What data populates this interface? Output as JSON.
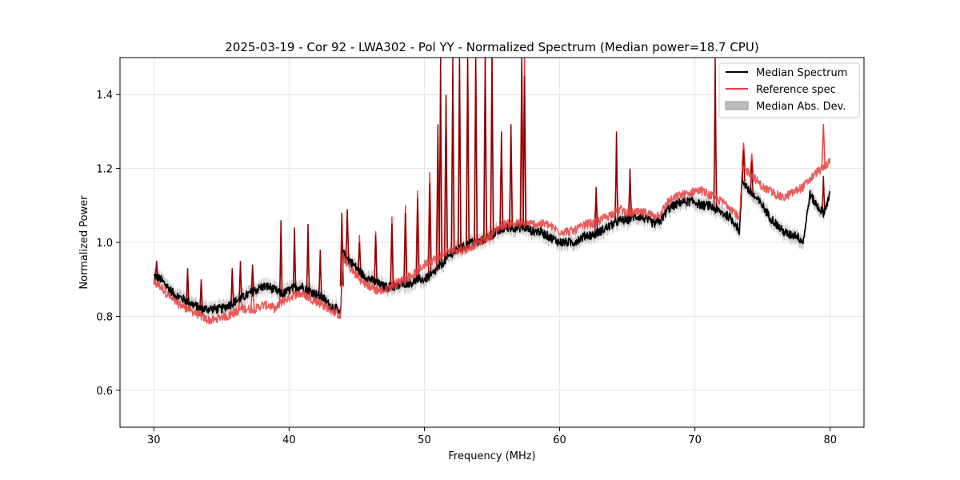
{
  "chart_data": {
    "type": "line",
    "title": "2025-03-19 - Cor 92 - LWA302 - Pol YY - Normalized Spectrum (Median power=18.7 CPU)",
    "xlabel": "Frequency (MHz)",
    "ylabel": "Normalized Power",
    "xlim": [
      27.5,
      82.5
    ],
    "ylim": [
      0.5,
      1.5
    ],
    "xticks": [
      30,
      40,
      50,
      60,
      70,
      80
    ],
    "yticks": [
      0.6,
      0.8,
      1.0,
      1.2,
      1.4
    ],
    "grid": true,
    "legend_position": "top-right",
    "legend": {
      "median": "Median Spectrum",
      "reference": "Reference spec",
      "mad": "Median Abs. Dev."
    },
    "colors": {
      "median": "#000000",
      "reference": "#e8403f",
      "overlap": "#8b0000",
      "mad": "#bdbdbd"
    },
    "series": [
      {
        "name": "Median Spectrum",
        "x": [
          30,
          30.5,
          31,
          31.5,
          32,
          32.5,
          33,
          33.5,
          34,
          34.5,
          35,
          35.5,
          36,
          36.5,
          37,
          37.5,
          38,
          38.5,
          39,
          39.5,
          40,
          40.5,
          41,
          41.5,
          42,
          42.5,
          43,
          43.5,
          43.8,
          44,
          44.5,
          45,
          45.5,
          46,
          46.5,
          47,
          47.5,
          48,
          48.5,
          49,
          49.5,
          50,
          50.5,
          51,
          51.5,
          52,
          52.5,
          53,
          53.5,
          54,
          54.5,
          55,
          55.5,
          56,
          56.5,
          57,
          57.5,
          58,
          58.5,
          59,
          59.5,
          60,
          60.5,
          61,
          61.5,
          62,
          62.5,
          63,
          63.5,
          64,
          64.5,
          65,
          65.5,
          66,
          66.5,
          67,
          67.5,
          68,
          68.5,
          69,
          69.5,
          70,
          70.5,
          71,
          71.5,
          72,
          72.5,
          73,
          73.3,
          73.5,
          74,
          74.5,
          75,
          75.5,
          76,
          76.5,
          77,
          77.5,
          78,
          78.5,
          79,
          79.5,
          80
        ],
        "y": [
          0.91,
          0.9,
          0.88,
          0.86,
          0.85,
          0.84,
          0.83,
          0.82,
          0.82,
          0.82,
          0.82,
          0.83,
          0.84,
          0.85,
          0.86,
          0.87,
          0.88,
          0.88,
          0.87,
          0.86,
          0.87,
          0.88,
          0.88,
          0.87,
          0.86,
          0.85,
          0.83,
          0.82,
          0.8,
          0.97,
          0.95,
          0.93,
          0.91,
          0.9,
          0.89,
          0.88,
          0.88,
          0.88,
          0.89,
          0.89,
          0.9,
          0.9,
          0.91,
          0.93,
          0.95,
          0.97,
          0.98,
          0.99,
          1.0,
          1.0,
          1.01,
          1.02,
          1.03,
          1.04,
          1.04,
          1.04,
          1.04,
          1.03,
          1.03,
          1.02,
          1.01,
          1.0,
          1.0,
          1.0,
          1.01,
          1.02,
          1.02,
          1.03,
          1.04,
          1.05,
          1.06,
          1.06,
          1.07,
          1.07,
          1.06,
          1.05,
          1.06,
          1.09,
          1.1,
          1.11,
          1.11,
          1.11,
          1.1,
          1.1,
          1.09,
          1.08,
          1.07,
          1.05,
          1.03,
          1.17,
          1.14,
          1.12,
          1.1,
          1.07,
          1.05,
          1.03,
          1.02,
          1.02,
          1.0,
          1.13,
          1.1,
          1.08,
          1.13
        ]
      },
      {
        "name": "Reference spec",
        "x": [
          30,
          30.5,
          31,
          31.5,
          32,
          32.5,
          33,
          33.5,
          34,
          34.5,
          35,
          35.5,
          36,
          36.5,
          37,
          37.5,
          38,
          38.5,
          39,
          39.5,
          40,
          40.5,
          41,
          41.5,
          42,
          42.5,
          43,
          43.5,
          43.8,
          44,
          44.5,
          45,
          45.5,
          46,
          46.5,
          47,
          47.5,
          48,
          48.5,
          49,
          49.5,
          50,
          50.5,
          51,
          51.5,
          52,
          52.5,
          53,
          53.5,
          54,
          54.5,
          55,
          55.5,
          56,
          56.5,
          57,
          57.5,
          58,
          58.5,
          59,
          59.5,
          60,
          60.5,
          61,
          61.5,
          62,
          62.5,
          63,
          63.5,
          64,
          64.5,
          65,
          65.5,
          66,
          66.5,
          67,
          67.5,
          68,
          68.5,
          69,
          69.5,
          70,
          70.5,
          71,
          71.5,
          72,
          72.5,
          73,
          73.3,
          73.5,
          74,
          74.5,
          75,
          75.5,
          76,
          76.5,
          77,
          77.5,
          78,
          78.5,
          79,
          79.5,
          80
        ],
        "y": [
          0.89,
          0.88,
          0.86,
          0.84,
          0.83,
          0.82,
          0.81,
          0.8,
          0.79,
          0.79,
          0.8,
          0.8,
          0.81,
          0.82,
          0.82,
          0.82,
          0.83,
          0.83,
          0.82,
          0.84,
          0.85,
          0.86,
          0.86,
          0.85,
          0.84,
          0.83,
          0.82,
          0.81,
          0.8,
          0.96,
          0.93,
          0.91,
          0.89,
          0.88,
          0.87,
          0.87,
          0.88,
          0.89,
          0.9,
          0.91,
          0.92,
          0.94,
          0.95,
          0.96,
          0.97,
          0.98,
          0.98,
          0.98,
          0.99,
          1.0,
          1.01,
          1.02,
          1.04,
          1.05,
          1.05,
          1.05,
          1.05,
          1.05,
          1.05,
          1.05,
          1.04,
          1.03,
          1.03,
          1.03,
          1.04,
          1.05,
          1.05,
          1.06,
          1.07,
          1.08,
          1.09,
          1.08,
          1.08,
          1.08,
          1.08,
          1.07,
          1.08,
          1.11,
          1.12,
          1.13,
          1.13,
          1.14,
          1.14,
          1.13,
          1.12,
          1.11,
          1.1,
          1.08,
          1.06,
          1.2,
          1.19,
          1.17,
          1.15,
          1.14,
          1.13,
          1.12,
          1.13,
          1.14,
          1.15,
          1.17,
          1.19,
          1.2,
          1.22
        ]
      }
    ],
    "spikes": [
      {
        "x": 30.2,
        "median": 0.95,
        "reference": 0.94
      },
      {
        "x": 32.5,
        "median": 0.93,
        "reference": 0.88
      },
      {
        "x": 33.5,
        "median": 0.9,
        "reference": 0.88
      },
      {
        "x": 35.8,
        "median": 0.93,
        "reference": 0.9
      },
      {
        "x": 36.4,
        "median": 0.95,
        "reference": 0.92
      },
      {
        "x": 37.3,
        "median": 0.94,
        "reference": 0.9
      },
      {
        "x": 39.4,
        "median": 1.06,
        "reference": 0.96
      },
      {
        "x": 40.4,
        "median": 1.04,
        "reference": 0.97
      },
      {
        "x": 41.4,
        "median": 1.05,
        "reference": 0.98
      },
      {
        "x": 42.3,
        "median": 0.98,
        "reference": 0.96
      },
      {
        "x": 43.9,
        "median": 1.08,
        "reference": 1.06
      },
      {
        "x": 44.3,
        "median": 1.09,
        "reference": 1.07
      },
      {
        "x": 45.2,
        "median": 1.0,
        "reference": 1.02
      },
      {
        "x": 46.4,
        "median": 1.02,
        "reference": 1.03
      },
      {
        "x": 47.6,
        "median": 1.05,
        "reference": 1.07
      },
      {
        "x": 48.6,
        "median": 1.08,
        "reference": 1.1
      },
      {
        "x": 49.5,
        "median": 1.12,
        "reference": 1.14
      },
      {
        "x": 50.4,
        "median": 1.16,
        "reference": 1.19
      },
      {
        "x": 51.0,
        "median": 1.32,
        "reference": 1.29
      },
      {
        "x": 51.2,
        "median": 1.5,
        "reference": 1.35
      },
      {
        "x": 51.6,
        "median": 1.4,
        "reference": 1.38
      },
      {
        "x": 52.1,
        "median": 1.5,
        "reference": 1.45
      },
      {
        "x": 52.6,
        "median": 1.5,
        "reference": 1.48
      },
      {
        "x": 53.2,
        "median": 1.5,
        "reference": 1.5
      },
      {
        "x": 53.8,
        "median": 1.5,
        "reference": 1.5
      },
      {
        "x": 54.5,
        "median": 1.5,
        "reference": 1.5
      },
      {
        "x": 55.0,
        "median": 1.5,
        "reference": 1.5
      },
      {
        "x": 55.7,
        "median": 1.3,
        "reference": 1.28
      },
      {
        "x": 56.4,
        "median": 1.32,
        "reference": 1.3
      },
      {
        "x": 57.2,
        "median": 1.5,
        "reference": 1.5
      },
      {
        "x": 57.4,
        "median": 1.45,
        "reference": 1.5
      },
      {
        "x": 62.7,
        "median": 1.15,
        "reference": 1.13
      },
      {
        "x": 64.2,
        "median": 1.3,
        "reference": 1.2
      },
      {
        "x": 65.2,
        "median": 1.2,
        "reference": 1.17
      },
      {
        "x": 71.5,
        "median": 1.5,
        "reference": 1.32
      },
      {
        "x": 73.6,
        "median": 1.25,
        "reference": 1.27
      },
      {
        "x": 74.2,
        "median": 1.22,
        "reference": 1.24
      },
      {
        "x": 79.5,
        "median": 1.18,
        "reference": 1.32
      }
    ]
  }
}
